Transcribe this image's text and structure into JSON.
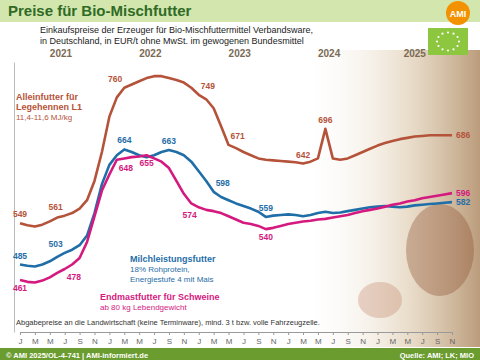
{
  "chart_data": {
    "type": "line",
    "title": "Preise für Bio-Mischfutter",
    "subtitle": [
      "Einkaufspreise der Erzeuger für Bio-Mischfuttermittel Verbandsware,",
      "in Deutschland, in EUR/t ohne MwSt. im gewogenen Bundesmittel"
    ],
    "logo": "AMI",
    "years": [
      "2021",
      "2022",
      "2023",
      "2024",
      "2025"
    ],
    "categories": [
      "J",
      null,
      "M",
      null,
      "M",
      null,
      "J",
      null,
      "S",
      null,
      "N",
      null,
      "J",
      null,
      "M",
      null,
      "M",
      null,
      "J",
      null,
      "S",
      null,
      "N",
      null,
      "J",
      null,
      "M",
      null,
      "M",
      null,
      "J",
      null,
      "S",
      null,
      "N",
      null,
      "J",
      null,
      "M",
      null,
      "M",
      null,
      "J",
      null,
      "S",
      null,
      "N",
      null,
      "J",
      null,
      "M",
      null,
      "M",
      null,
      "J",
      null,
      "S",
      null,
      "N"
    ],
    "series": [
      {
        "name": "Alleinfutter für Legehennen L1",
        "description": "11,4-11,6 MJ/kg",
        "color": "#b5533a",
        "values": [
          549,
          546,
          544,
          547,
          552,
          558,
          561,
          565,
          572,
          585,
          615,
          660,
          715,
          745,
          760,
          765,
          770,
          775,
          778,
          778,
          775,
          772,
          768,
          760,
          749,
          742,
          728,
          700,
          671,
          666,
          660,
          655,
          650,
          648,
          647,
          646,
          645,
          644,
          642,
          645,
          650,
          696,
          650,
          648,
          650,
          655,
          660,
          665,
          670,
          674,
          677,
          680,
          682,
          684,
          685,
          686,
          686,
          686,
          686
        ],
        "value_labels": [
          "549",
          null,
          null,
          null,
          null,
          null,
          "561",
          null,
          null,
          null,
          null,
          null,
          null,
          null,
          "760",
          null,
          null,
          null,
          null,
          null,
          null,
          null,
          null,
          null,
          "749",
          null,
          null,
          null,
          "671",
          null,
          null,
          null,
          null,
          null,
          null,
          null,
          null,
          null,
          "642",
          null,
          null,
          "696",
          null,
          null,
          null,
          null,
          null,
          null,
          null,
          null,
          null,
          null,
          null,
          null,
          null,
          null,
          null,
          null,
          "686"
        ]
      },
      {
        "name": "Milchleistungsfutter",
        "description": "18% Rohprotein, Energiestufe 4 mit Mais",
        "color": "#1f6ea8",
        "values": [
          485,
          483,
          482,
          485,
          490,
          497,
          503,
          508,
          515,
          530,
          565,
          610,
          640,
          655,
          664,
          660,
          655,
          652,
          655,
          660,
          663,
          660,
          655,
          645,
          630,
          615,
          598,
          590,
          585,
          580,
          576,
          572,
          567,
          559,
          561,
          562,
          563,
          562,
          560,
          562,
          565,
          567,
          565,
          566,
          568,
          570,
          572,
          574,
          575,
          576,
          575,
          574,
          575,
          577,
          578,
          579,
          580,
          581,
          582
        ],
        "value_labels": [
          "485",
          null,
          null,
          null,
          null,
          null,
          "503",
          null,
          null,
          null,
          null,
          null,
          null,
          null,
          "664",
          null,
          null,
          null,
          null,
          null,
          "663",
          null,
          null,
          null,
          null,
          null,
          "598",
          null,
          null,
          null,
          null,
          null,
          null,
          "559",
          null,
          null,
          null,
          null,
          null,
          null,
          null,
          null,
          null,
          null,
          null,
          null,
          null,
          null,
          null,
          null,
          null,
          null,
          null,
          null,
          null,
          null,
          null,
          null,
          "582"
        ]
      },
      {
        "name": "Endmastfutter für Schweine",
        "description": "ab 80 kg Lebendgewicht",
        "color": "#d4197f",
        "values": [
          461,
          458,
          457,
          460,
          465,
          472,
          478,
          485,
          495,
          520,
          560,
          600,
          625,
          648,
          650,
          652,
          653,
          655,
          650,
          645,
          635,
          615,
          595,
          580,
          574,
          570,
          568,
          565,
          560,
          555,
          550,
          548,
          545,
          540,
          542,
          545,
          548,
          550,
          552,
          553,
          555,
          556,
          558,
          560,
          562,
          565,
          568,
          570,
          572,
          575,
          578,
          580,
          583,
          585,
          588,
          590,
          592,
          594,
          596
        ],
        "value_labels": [
          "461",
          null,
          null,
          null,
          null,
          null,
          "478",
          null,
          null,
          null,
          null,
          null,
          null,
          "648",
          null,
          null,
          null,
          "655",
          null,
          null,
          null,
          null,
          null,
          null,
          "574",
          null,
          null,
          null,
          null,
          null,
          null,
          null,
          null,
          "540",
          null,
          null,
          null,
          null,
          null,
          null,
          null,
          null,
          null,
          null,
          null,
          null,
          null,
          null,
          null,
          null,
          null,
          null,
          null,
          null,
          null,
          null,
          null,
          null,
          "596"
        ]
      }
    ],
    "ylim": [
      380,
      800
    ],
    "yticks": [],
    "tick_labels": "x",
    "grid": false,
    "data_labels": true,
    "footnote": "Abgabepreise an die Landwirtschaft (keine Terminware), mind. 3 t bzw. volle Fahrzeugzelle.",
    "copyright": "© AMI 2025/OL-4-741 | AMI-informiert.de",
    "source": "Quelle: AMI; LK; MIO"
  }
}
